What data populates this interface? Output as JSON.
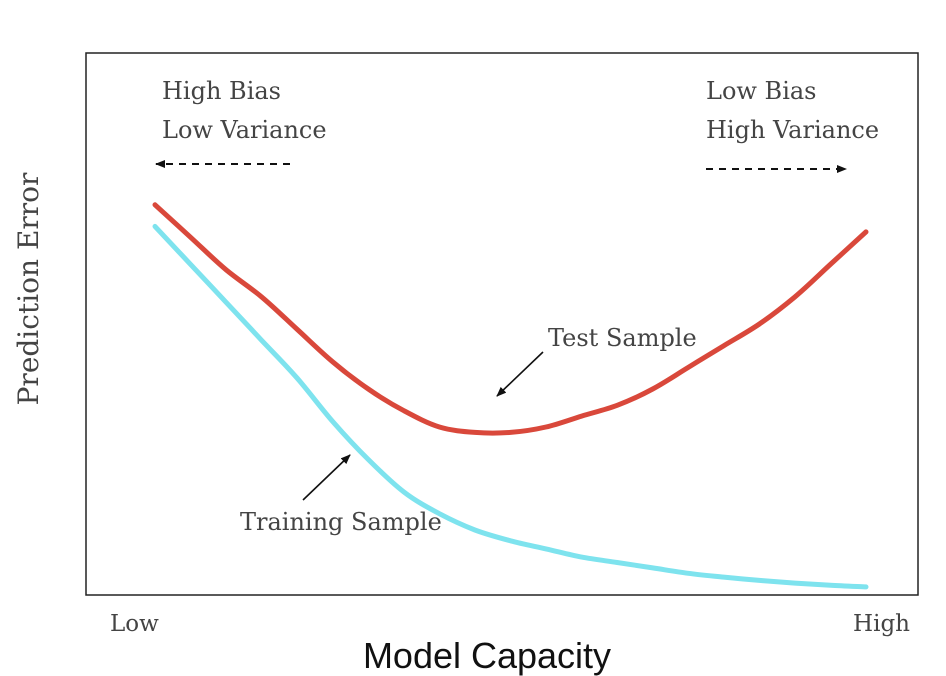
{
  "chart_data": {
    "type": "line",
    "title": "",
    "xlabel": "Model Capacity",
    "ylabel": "Prediction Error",
    "x_tick_labels": [
      "Low",
      "High"
    ],
    "xlim": [
      0,
      1
    ],
    "ylim": [
      0,
      1
    ],
    "grid": false,
    "series": [
      {
        "name": "Test Sample",
        "color": "#d9483b",
        "x": [
          0.0,
          0.05,
          0.1,
          0.15,
          0.2,
          0.25,
          0.3,
          0.35,
          0.4,
          0.45,
          0.5,
          0.55,
          0.6,
          0.65,
          0.7,
          0.75,
          0.8,
          0.85,
          0.9,
          0.95,
          1.0
        ],
        "y": [
          0.72,
          0.66,
          0.6,
          0.55,
          0.49,
          0.43,
          0.38,
          0.34,
          0.31,
          0.3,
          0.3,
          0.31,
          0.33,
          0.35,
          0.38,
          0.42,
          0.46,
          0.5,
          0.55,
          0.61,
          0.67
        ]
      },
      {
        "name": "Training Sample",
        "color": "#7ee3ee",
        "x": [
          0.0,
          0.05,
          0.1,
          0.15,
          0.2,
          0.25,
          0.3,
          0.35,
          0.4,
          0.45,
          0.5,
          0.55,
          0.6,
          0.65,
          0.7,
          0.75,
          0.8,
          0.85,
          0.9,
          0.95,
          1.0
        ],
        "y": [
          0.68,
          0.61,
          0.54,
          0.47,
          0.4,
          0.32,
          0.25,
          0.19,
          0.15,
          0.12,
          0.1,
          0.085,
          0.07,
          0.06,
          0.05,
          0.04,
          0.033,
          0.027,
          0.022,
          0.018,
          0.015
        ]
      }
    ],
    "annotations": {
      "left_line1": "High Bias",
      "left_line2": "Low Variance",
      "right_line1": "Low Bias",
      "right_line2": "High Variance",
      "test_label": "Test Sample",
      "train_label": "Training Sample"
    }
  }
}
